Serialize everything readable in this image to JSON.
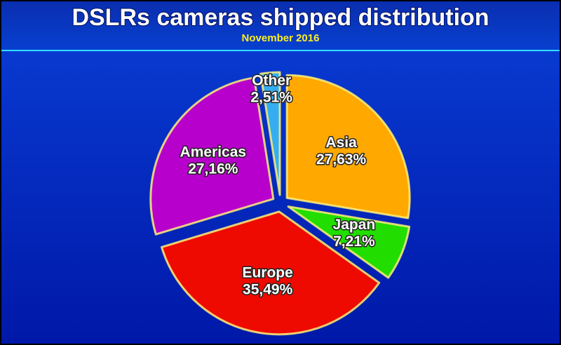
{
  "chart_data": {
    "type": "pie",
    "title": "DSLRs cameras shipped distribution",
    "subtitle": "November 2016",
    "categories": [
      "Asia",
      "Japan",
      "Europe",
      "Americas",
      "Other"
    ],
    "values": [
      27.63,
      7.21,
      35.49,
      27.16,
      2.51
    ],
    "value_labels": [
      "27,63%",
      "7,21%",
      "35,49%",
      "27,16%",
      "2,51%"
    ],
    "colors": [
      "#ffa800",
      "#22dd00",
      "#ee0a00",
      "#b800cc",
      "#35aef0"
    ]
  }
}
